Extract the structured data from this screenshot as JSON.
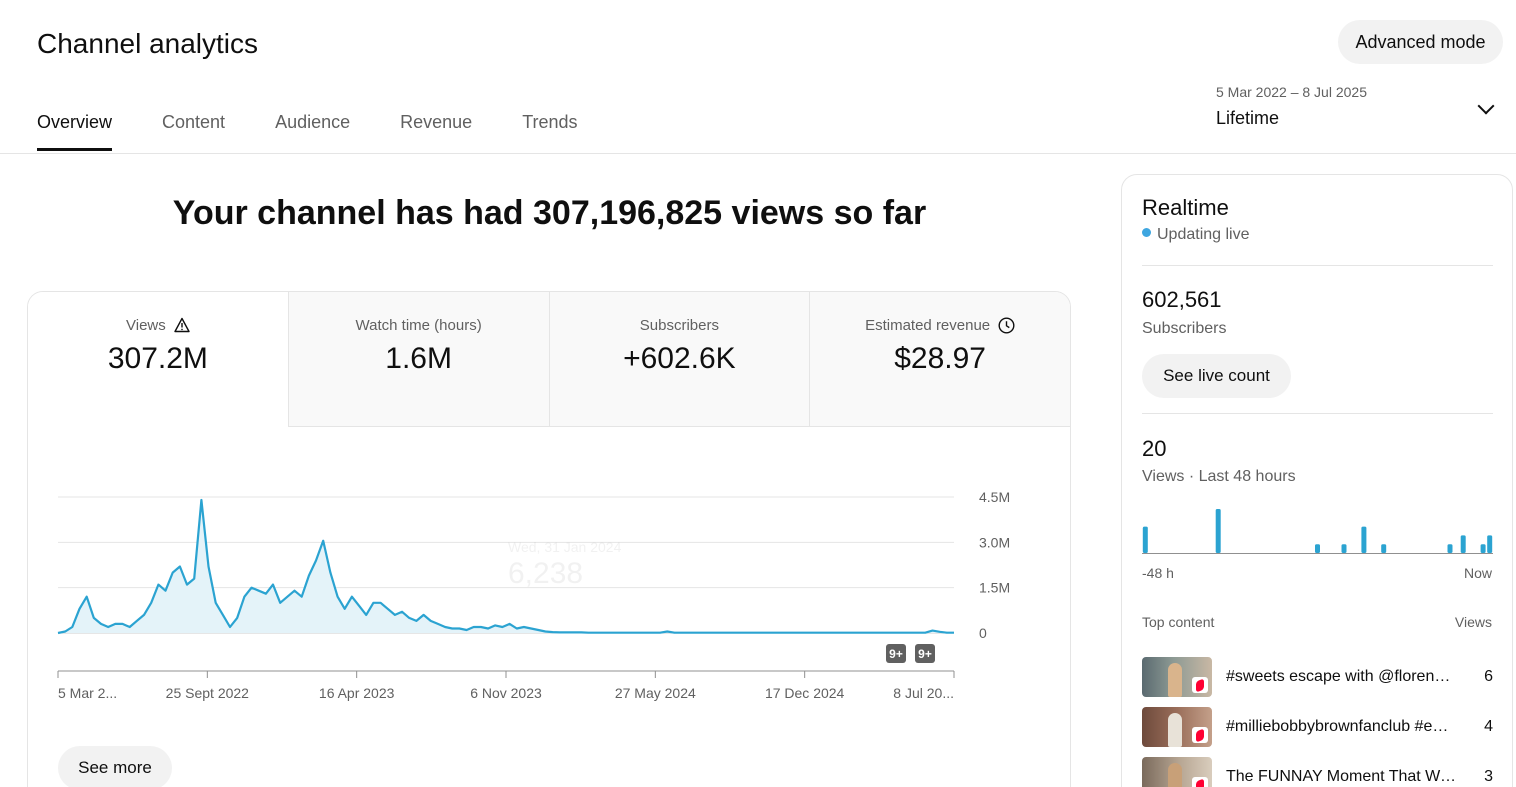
{
  "header": {
    "title": "Channel analytics",
    "advanced_mode_label": "Advanced mode"
  },
  "tabs": [
    {
      "label": "Overview",
      "active": true
    },
    {
      "label": "Content",
      "active": false
    },
    {
      "label": "Audience",
      "active": false
    },
    {
      "label": "Revenue",
      "active": false
    },
    {
      "label": "Trends",
      "active": false
    }
  ],
  "date_range": {
    "range": "5 Mar 2022 – 8 Jul 2025",
    "period": "Lifetime",
    "dropdown_icon": "chevron-down-icon"
  },
  "headline": "Your channel has had 307,196,825 views so far",
  "metrics": [
    {
      "label": "Views",
      "value": "307.2M",
      "icon": "warning-icon"
    },
    {
      "label": "Watch time (hours)",
      "value": "1.6M"
    },
    {
      "label": "Subscribers",
      "value": "+602.6K"
    },
    {
      "label": "Estimated revenue",
      "value": "$28.97",
      "icon": "clock-icon"
    }
  ],
  "chart_data": {
    "type": "area",
    "series": [
      {
        "values": [
          0.0,
          0.05,
          0.2,
          0.8,
          1.2,
          0.5,
          0.3,
          0.2,
          0.3,
          0.3,
          0.2,
          0.4,
          0.6,
          1.0,
          1.6,
          1.4,
          2.0,
          2.2,
          1.6,
          1.8,
          4.4,
          2.2,
          1.0,
          0.6,
          0.2,
          0.5,
          1.2,
          1.5,
          1.4,
          1.3,
          1.6,
          1.0,
          1.2,
          1.4,
          1.2,
          1.9,
          2.4,
          3.05,
          2.0,
          1.2,
          0.8,
          1.2,
          0.9,
          0.6,
          1.0,
          1.0,
          0.8,
          0.6,
          0.7,
          0.5,
          0.4,
          0.6,
          0.4,
          0.3,
          0.2,
          0.15,
          0.15,
          0.1,
          0.2,
          0.2,
          0.15,
          0.25,
          0.2,
          0.3,
          0.15,
          0.2,
          0.15,
          0.1,
          0.05,
          0.03,
          0.02,
          0.02,
          0.02,
          0.02,
          0.01,
          0.01,
          0.01,
          0.01,
          0.01,
          0.01,
          0.01,
          0.01,
          0.01,
          0.01,
          0.01,
          0.05,
          0.01,
          0.01,
          0.01,
          0.01,
          0.01,
          0.01,
          0.01,
          0.01,
          0.01,
          0.01,
          0.01,
          0.01,
          0.01,
          0.01,
          0.01,
          0.01,
          0.01,
          0.01,
          0.01,
          0.01,
          0.01,
          0.01,
          0.01,
          0.01,
          0.01,
          0.01,
          0.01,
          0.01,
          0.01,
          0.01,
          0.01,
          0.01,
          0.01,
          0.01,
          0.01,
          0.01,
          0.08,
          0.04,
          0.01,
          0.01
        ]
      }
    ],
    "x_ticks": [
      "5 Mar 2...",
      "25 Sept 2022",
      "16 Apr 2023",
      "6 Nov 2023",
      "27 May 2024",
      "17 Dec 2024",
      "8 Jul 20..."
    ],
    "y_ticks": [
      "4.5M",
      "3.0M",
      "1.5M",
      "0"
    ],
    "ylim": [
      0,
      4.5
    ],
    "grid": true,
    "line_color": "#2ba3d1",
    "fill_color": "#e4f3f9",
    "tooltip": {
      "date": "Wed, 31 Jan 2024",
      "value": "6,238"
    },
    "badges": [
      "9+",
      "9+"
    ]
  },
  "see_more_label": "See more",
  "realtime": {
    "title": "Realtime",
    "status": "Updating live",
    "subscribers_count": "602,561",
    "subscribers_label": "Subscribers",
    "live_count_label": "See live count",
    "views_count": "20",
    "views_label": "Views · Last 48 hours",
    "chart_data": {
      "type": "bar",
      "values": [
        3,
        0,
        0,
        0,
        0,
        0,
        0,
        0,
        0,
        0,
        0,
        5,
        0,
        0,
        0,
        0,
        0,
        0,
        0,
        0,
        0,
        0,
        0,
        0,
        0,
        0,
        1,
        0,
        0,
        0,
        1,
        0,
        0,
        3,
        0,
        0,
        1,
        0,
        0,
        0,
        0,
        0,
        0,
        0,
        0,
        0,
        1,
        0,
        2,
        0,
        0,
        1,
        2
      ],
      "bar_color": "#2ba3d1"
    },
    "axis_start": "-48 h",
    "axis_end": "Now",
    "top_content_label": "Top content",
    "views_col_label": "Views",
    "top_content": [
      {
        "title": "#sweets escape with @florence...",
        "views": "6"
      },
      {
        "title": "#milliebobbybrownfanclub #edit...",
        "views": "4"
      },
      {
        "title": "The FUNNAY Moment That Went...",
        "views": "3"
      }
    ]
  }
}
